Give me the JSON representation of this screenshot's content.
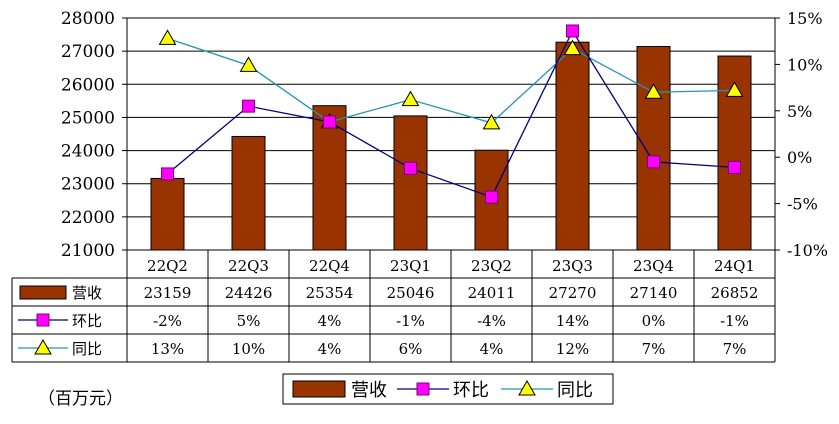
{
  "chart_data": {
    "type": "bar",
    "unit_label": "（百万元）",
    "categories": [
      "22Q2",
      "22Q3",
      "22Q4",
      "23Q1",
      "23Q2",
      "23Q3",
      "23Q4",
      "24Q1"
    ],
    "left_axis": {
      "ylim": [
        21000,
        28000
      ],
      "ticks": [
        "21000",
        "22000",
        "23000",
        "24000",
        "25000",
        "26000",
        "27000",
        "28000"
      ]
    },
    "right_axis": {
      "ylim": [
        -10,
        15
      ],
      "ticks": [
        "-10%",
        "-5%",
        "0%",
        "5%",
        "10%",
        "15%"
      ]
    },
    "series": [
      {
        "name": "营收",
        "kind": "bar",
        "color": "#993300",
        "values": [
          23159,
          24426,
          25354,
          25046,
          24011,
          27270,
          27140,
          26852
        ],
        "labels": [
          "23159",
          "24426",
          "25354",
          "25046",
          "24011",
          "27270",
          "27140",
          "26852"
        ]
      },
      {
        "name": "环比",
        "kind": "line",
        "axis": "right",
        "color": "#000080",
        "marker": "square",
        "marker_color": "#ff00ff",
        "values": [
          -1.8,
          5.5,
          3.8,
          -1.2,
          -4.3,
          13.6,
          -0.5,
          -1.1
        ],
        "labels": [
          "-2%",
          "5%",
          "4%",
          "-1%",
          "-4%",
          "14%",
          "0%",
          "-1%"
        ]
      },
      {
        "name": "同比",
        "kind": "line",
        "axis": "right",
        "color": "#2196b0",
        "marker": "triangle",
        "marker_color": "#ffff00",
        "values": [
          12.8,
          9.9,
          3.8,
          6.2,
          3.7,
          11.7,
          7.0,
          7.2
        ],
        "labels": [
          "13%",
          "10%",
          "4%",
          "6%",
          "4%",
          "12%",
          "7%",
          "7%"
        ]
      }
    ],
    "legend_placement": "bottom-center"
  }
}
